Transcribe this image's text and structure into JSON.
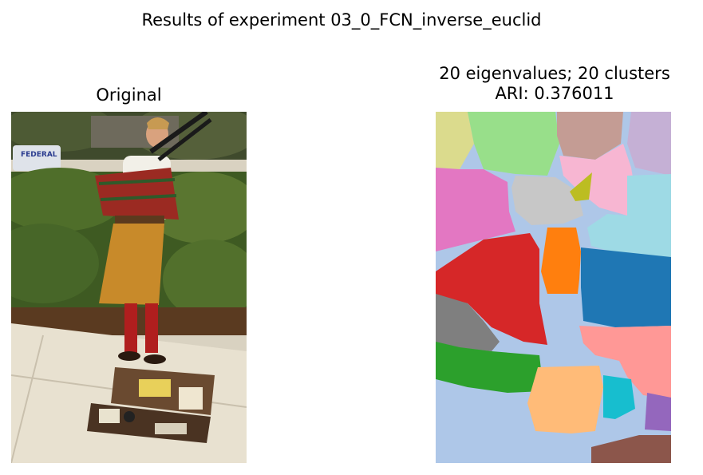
{
  "figure": {
    "suptitle": "Results of experiment 03_0_FCN_inverse_euclid"
  },
  "left_panel": {
    "title": "Original"
  },
  "right_panel": {
    "title_line1": "20 eigenvalues; 20 clusters",
    "title_line2": "ARI: 0.376011",
    "cluster_colors": [
      "#aec7e8",
      "#1f77b4",
      "#ff7f0e",
      "#ffbb78",
      "#2ca02c",
      "#98df8a",
      "#d62728",
      "#ff9896",
      "#9467bd",
      "#c5b0d5",
      "#8c564b",
      "#c49c94",
      "#e377c2",
      "#f7b6d2",
      "#7f7f7f",
      "#c7c7c7",
      "#bcbd22",
      "#dbdb8d",
      "#17becf",
      "#9edae5"
    ]
  }
}
